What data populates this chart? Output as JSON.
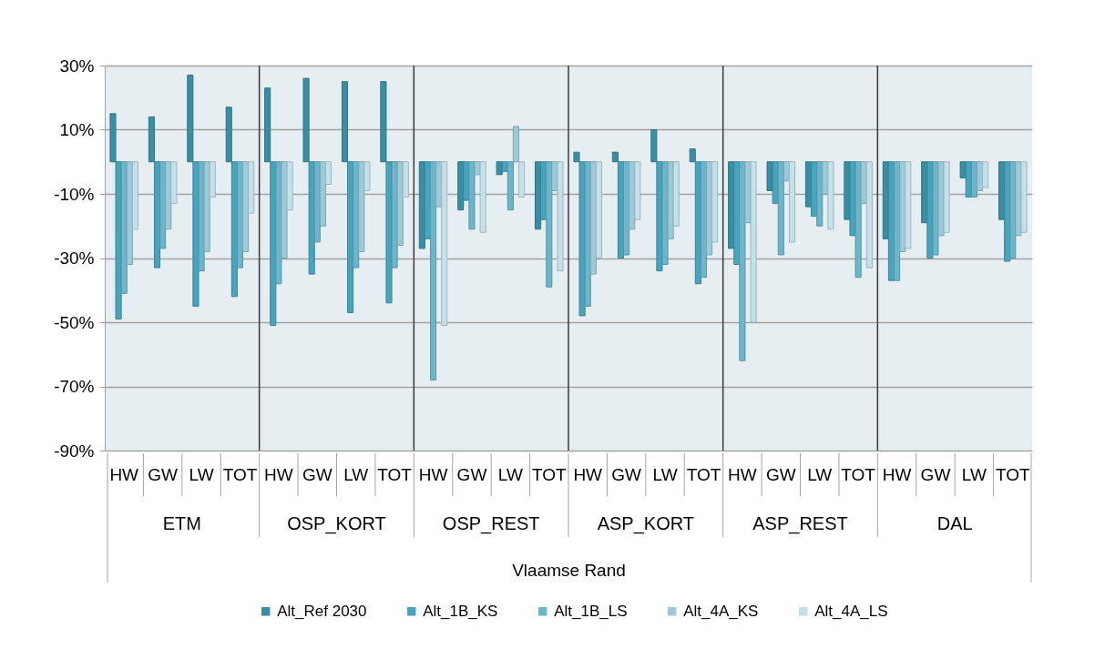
{
  "chart_data": {
    "type": "bar",
    "xlabel": "Vlaamse Rand",
    "categories": [
      "HW",
      "GW",
      "LW",
      "TOT",
      "HW",
      "GW",
      "LW",
      "TOT",
      "HW",
      "GW",
      "LW",
      "TOT",
      "HW",
      "GW",
      "LW",
      "TOT",
      "HW",
      "GW",
      "LW",
      "TOT",
      "HW",
      "GW",
      "LW",
      "TOT"
    ],
    "annotations": [
      "ETM",
      "OSP_KORT",
      "OSP_REST",
      "ASP_KORT",
      "ASP_REST",
      "DAL"
    ],
    "series": [
      {
        "name": "Alt_Ref 2030",
        "color": "#3a8ea3",
        "values": [
          15,
          14,
          27,
          17,
          23,
          26,
          25,
          25,
          -27,
          -15,
          -4,
          -21,
          3,
          3,
          10,
          4,
          -27,
          -9,
          -14,
          -18,
          -24,
          -19,
          -5,
          -18
        ]
      },
      {
        "name": "Alt_1B_KS",
        "color": "#46a4bd",
        "values": [
          -49,
          -33,
          -45,
          -42,
          -51,
          -35,
          -47,
          -44,
          -24,
          -12,
          -3,
          -18,
          -48,
          -30,
          -34,
          -38,
          -32,
          -13,
          -17,
          -23,
          -37,
          -30,
          -11,
          -31
        ]
      },
      {
        "name": "Alt_1B_LS",
        "color": "#6cb6cb",
        "values": [
          -41,
          -27,
          -34,
          -33,
          -38,
          -25,
          -33,
          -33,
          -68,
          -21,
          -15,
          -39,
          -45,
          -29,
          -32,
          -36,
          -62,
          -29,
          -20,
          -36,
          -37,
          -29,
          -11,
          -30
        ]
      },
      {
        "name": "Alt_4A_KS",
        "color": "#9ccad8",
        "values": [
          -32,
          -21,
          -28,
          -28,
          -30,
          -20,
          -28,
          -26,
          -14,
          -4,
          11,
          -9,
          -35,
          -21,
          -24,
          -29,
          -19,
          -6,
          -10,
          -13,
          -28,
          -23,
          -9,
          -23
        ]
      },
      {
        "name": "Alt_4A_LS",
        "color": "#c4e0e8",
        "values": [
          -21,
          -13,
          -11,
          -16,
          -15,
          -7,
          -9,
          -11,
          -51,
          -22,
          -11,
          -34,
          -30,
          -18,
          -20,
          -25,
          -50,
          -25,
          -21,
          -33,
          -27,
          -22,
          -8,
          -22
        ]
      }
    ],
    "ylim": [
      -90,
      30
    ],
    "yticks": [
      {
        "value": -90,
        "label": "-90%"
      },
      {
        "value": -70,
        "label": "-70%"
      },
      {
        "value": -50,
        "label": "-50%"
      },
      {
        "value": -30,
        "label": "-30%"
      },
      {
        "value": -10,
        "label": "-10%"
      },
      {
        "value": 10,
        "label": "10%"
      },
      {
        "value": 30,
        "label": "30%"
      }
    ],
    "grid": true,
    "legend": "bottom"
  }
}
